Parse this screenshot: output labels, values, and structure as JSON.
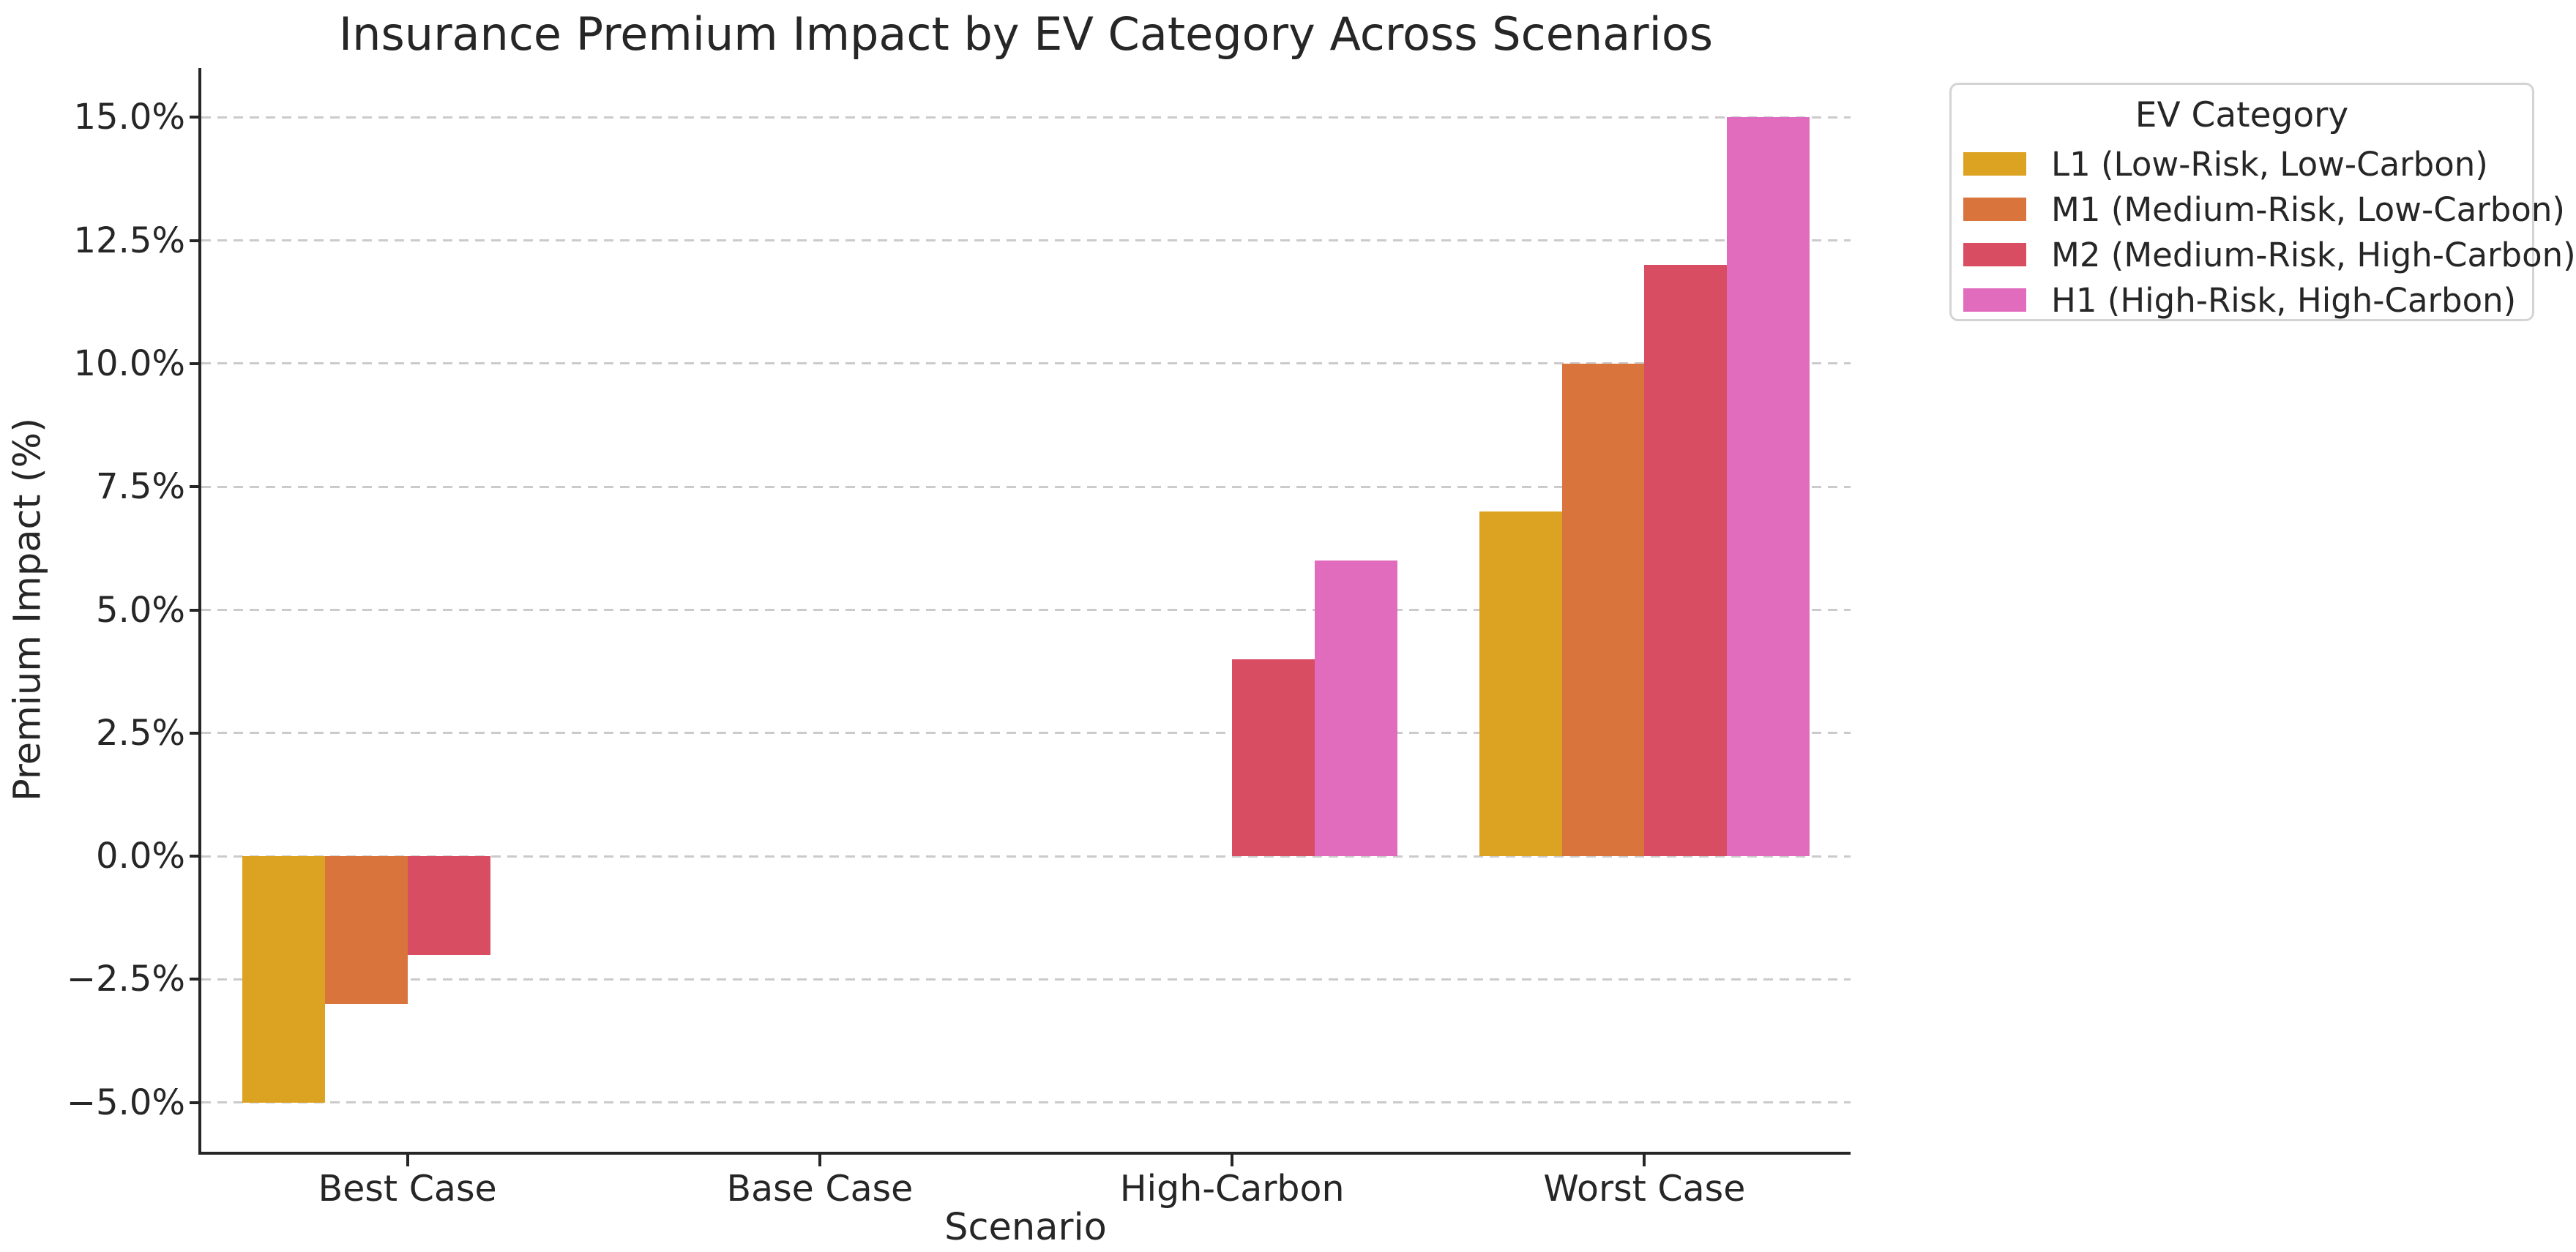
{
  "figure": {
    "background": "#ffffff",
    "text_color": "#262626",
    "spine_color": "#262626",
    "grid_color": "#cbcbcb"
  },
  "chart_data": {
    "type": "bar",
    "title": "Insurance Premium Impact by EV Category Across Scenarios",
    "xlabel": "Scenario",
    "ylabel": "Premium Impact (%)",
    "categories": [
      "Best Case",
      "Base Case",
      "High-Carbon",
      "Worst Case"
    ],
    "series": [
      {
        "name": "L1 (Low-Risk, Low-Carbon)",
        "color": "#DCA322",
        "values": [
          -5,
          0,
          0,
          7
        ]
      },
      {
        "name": "M1 (Medium-Risk, Low-Carbon)",
        "color": "#D8743C",
        "values": [
          -3,
          0,
          0,
          10
        ]
      },
      {
        "name": "M2 (Medium-Risk, High-Carbon)",
        "color": "#D94D63",
        "values": [
          -2,
          0,
          4,
          12
        ]
      },
      {
        "name": "H1 (High-Risk, High-Carbon)",
        "color": "#E16CBE",
        "values": [
          0,
          0,
          6,
          15
        ]
      }
    ],
    "ylim": [
      -6,
      16
    ],
    "yticks": [
      {
        "value": 15,
        "label": "15.0%"
      },
      {
        "value": 12.5,
        "label": "12.5%"
      },
      {
        "value": 10,
        "label": "10.0%"
      },
      {
        "value": 7.5,
        "label": "7.5%"
      },
      {
        "value": 5,
        "label": "5.0%"
      },
      {
        "value": 2.5,
        "label": "2.5%"
      },
      {
        "value": 0,
        "label": "0.0%"
      },
      {
        "value": -2.5,
        "label": "−2.5%"
      },
      {
        "value": -5,
        "label": "−5.0%"
      }
    ],
    "grid": "horizontal-dashed",
    "legend": {
      "title": "EV Category",
      "position": "upper-right-outside"
    }
  }
}
